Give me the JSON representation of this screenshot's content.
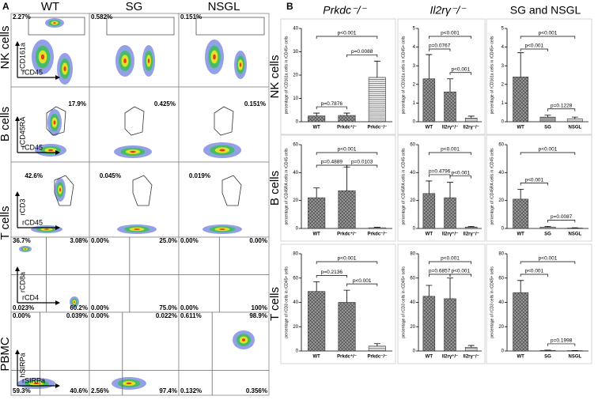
{
  "flow_panel": {
    "label": "A",
    "columns": [
      "WT",
      "SG",
      "NSGL"
    ],
    "row_labels": [
      "NK cells",
      "B cells",
      "T cells",
      "PBMC"
    ],
    "rows": [
      {
        "y_axis": "rCD161a",
        "x_axis": "rCD45",
        "gates": [
          "2.27%",
          "0.582%",
          "0.151%"
        ]
      },
      {
        "y_axis": "rCD45RA",
        "x_axis": "rCD45",
        "gates": [
          "17.9%",
          "0.425%",
          "0.151%"
        ]
      },
      {
        "y_axis": "rCD3",
        "x_axis": "rCD45",
        "gates": [
          "42.6%",
          "0.045%",
          "0.019%"
        ]
      },
      {
        "y_axis": "rCD8a",
        "x_axis": "rCD4",
        "quadrants": [
          [
            "36.7%",
            "3.08%",
            "0.023%",
            "60.2%"
          ],
          [
            "0.00%",
            "25.0%",
            "0.00%",
            "75.0%"
          ],
          [
            "0.00%",
            "0.00%",
            "0.00%",
            "100%"
          ]
        ]
      },
      {
        "y_axis": "hSIRPa",
        "x_axis": "rSIRPa",
        "quadrants": [
          [
            "0.00%",
            "0.039%",
            "59.3%",
            "40.6%"
          ],
          [
            "0.00%",
            "0.022%",
            "2.56%",
            "97.4%"
          ],
          [
            "0.611%",
            "98.9%",
            "0.132%",
            "0.356%"
          ]
        ]
      }
    ]
  },
  "panel_b": {
    "label": "B",
    "column_titles": [
      "Prkdc⁻/⁻",
      "Il2rγ⁻/⁻",
      "SG and NSGL"
    ],
    "row_labels": [
      "NK cells",
      "B cells",
      "T cells"
    ]
  },
  "chart_data": [
    {
      "type": "bar",
      "ylabel": "percentage of rCD161a cells in rCD45+ cells",
      "categories": [
        "WT",
        "Prkdc⁺/⁻",
        "Prkdc⁻/⁻"
      ],
      "values": [
        2.5,
        2.7,
        19
      ],
      "errors": [
        1.2,
        1.0,
        7
      ],
      "ylim": [
        0,
        40
      ],
      "yticks": [
        0,
        10,
        20,
        30,
        40
      ],
      "patterns": [
        "crosshatch",
        "crosshatch",
        "hlines"
      ],
      "comparisons": [
        {
          "label": "p<0.001",
          "between": [
            "WT",
            "Prkdc⁻/⁻"
          ]
        },
        {
          "label": "p=0.0088",
          "between": [
            "Prkdc⁺/⁻",
            "Prkdc⁻/⁻"
          ]
        },
        {
          "label": "p=0.7876",
          "between": [
            "WT",
            "Prkdc⁺/⁻"
          ]
        }
      ]
    },
    {
      "type": "bar",
      "ylabel": "percentage of rCD161a cells in rCD45+ cells",
      "categories": [
        "WT",
        "Il2rγ⁺/⁻",
        "Il2rγ⁻/⁻"
      ],
      "values": [
        2.3,
        1.6,
        0.2
      ],
      "errors": [
        1.3,
        0.7,
        0.1
      ],
      "ylim": [
        0,
        5
      ],
      "yticks": [
        0,
        1,
        2,
        3,
        4,
        5
      ],
      "patterns": [
        "crosshatch",
        "crosshatch",
        "hlines"
      ],
      "comparisons": [
        {
          "label": "p<0.001",
          "between": [
            "WT",
            "Il2rγ⁻/⁻"
          ]
        },
        {
          "label": "p=0.0767",
          "between": [
            "WT",
            "Il2rγ⁺/⁻"
          ]
        },
        {
          "label": "p<0.001",
          "between": [
            "Il2rγ⁺/⁻",
            "Il2rγ⁻/⁻"
          ]
        }
      ]
    },
    {
      "type": "bar",
      "ylabel": "percentage of rCD161a cells in rCD45+ cells",
      "categories": [
        "WT",
        "SG",
        "NSGL"
      ],
      "values": [
        2.4,
        0.25,
        0.15
      ],
      "errors": [
        1.3,
        0.1,
        0.1
      ],
      "ylim": [
        0,
        5
      ],
      "yticks": [
        0,
        1,
        2,
        3,
        4,
        5
      ],
      "patterns": [
        "crosshatch",
        "dots",
        "hlines"
      ],
      "comparisons": [
        {
          "label": "p<0.001",
          "between": [
            "WT",
            "NSGL"
          ]
        },
        {
          "label": "p<0.001",
          "between": [
            "WT",
            "SG"
          ]
        },
        {
          "label": "p=0.1228",
          "between": [
            "SG",
            "NSGL"
          ]
        }
      ]
    },
    {
      "type": "bar",
      "ylabel": "percentage of rCD45RA cells in rCD45 cells",
      "categories": [
        "WT",
        "Prkdc⁺/⁻",
        "Prkdc⁻/⁻"
      ],
      "values": [
        22,
        27,
        0.5
      ],
      "errors": [
        7,
        17,
        0.3
      ],
      "ylim": [
        0,
        60
      ],
      "yticks": [
        0,
        20,
        40,
        60
      ],
      "patterns": [
        "crosshatch",
        "crosshatch",
        "hlines"
      ],
      "comparisons": [
        {
          "label": "p<0.001",
          "between": [
            "WT",
            "Prkdc⁻/⁻"
          ]
        },
        {
          "label": "p=0.4889",
          "between": [
            "WT",
            "Prkdc⁺/⁻"
          ]
        },
        {
          "label": "p=0.0103",
          "between": [
            "Prkdc⁺/⁻",
            "Prkdc⁻/⁻"
          ]
        }
      ]
    },
    {
      "type": "bar",
      "ylabel": "percentage of rCD45RA cells in rCD45 cells",
      "categories": [
        "WT",
        "Il2rγ⁺/⁻",
        "Il2rγ⁻/⁻"
      ],
      "values": [
        25,
        22,
        1
      ],
      "errors": [
        9,
        11,
        0.5
      ],
      "ylim": [
        0,
        60
      ],
      "yticks": [
        0,
        20,
        40,
        60
      ],
      "patterns": [
        "crosshatch",
        "crosshatch",
        "hlines"
      ],
      "comparisons": [
        {
          "label": "p<0.001",
          "between": [
            "WT",
            "Il2rγ⁻/⁻"
          ]
        },
        {
          "label": "p=0.4796",
          "between": [
            "WT",
            "Il2rγ⁺/⁻"
          ]
        },
        {
          "label": "p<0.001",
          "between": [
            "Il2rγ⁺/⁻",
            "Il2rγ⁻/⁻"
          ]
        }
      ]
    },
    {
      "type": "bar",
      "ylabel": "percentage of rCD45RA cells in rCD45 cells",
      "categories": [
        "WT",
        "SG",
        "NSGL"
      ],
      "values": [
        21,
        1,
        0.3
      ],
      "errors": [
        7,
        0.5,
        0.2
      ],
      "ylim": [
        0,
        60
      ],
      "yticks": [
        0,
        20,
        40,
        60
      ],
      "patterns": [
        "crosshatch",
        "dots",
        "hlines"
      ],
      "comparisons": [
        {
          "label": "p<0.001",
          "between": [
            "WT",
            "NSGL"
          ]
        },
        {
          "label": "p<0.001",
          "between": [
            "WT",
            "SG"
          ]
        },
        {
          "label": "p=0.0087",
          "between": [
            "SG",
            "NSGL"
          ]
        }
      ]
    },
    {
      "type": "bar",
      "ylabel": "percentage of rCD3 cells in rCD45+ cells",
      "categories": [
        "WT",
        "Prkdc⁺/⁻",
        "Prkdc⁻/⁻"
      ],
      "values": [
        49,
        40,
        4
      ],
      "errors": [
        8,
        10,
        2
      ],
      "ylim": [
        0,
        80
      ],
      "yticks": [
        0,
        20,
        40,
        60,
        80
      ],
      "patterns": [
        "crosshatch",
        "crosshatch",
        "hlines"
      ],
      "comparisons": [
        {
          "label": "p<0.001",
          "between": [
            "WT",
            "Prkdc⁻/⁻"
          ]
        },
        {
          "label": "p=0.2136",
          "between": [
            "WT",
            "Prkdc⁺/⁻"
          ]
        },
        {
          "label": "p<0.001",
          "between": [
            "Prkdc⁺/⁻",
            "Prkdc⁻/⁻"
          ]
        }
      ]
    },
    {
      "type": "bar",
      "ylabel": "percentage of rCD3 cells in rCD45+ cells",
      "categories": [
        "WT",
        "Il2rγ⁺/⁻",
        "Il2rγ⁻/⁻"
      ],
      "values": [
        45,
        43,
        3
      ],
      "errors": [
        9,
        17,
        1.5
      ],
      "ylim": [
        0,
        80
      ],
      "yticks": [
        0,
        20,
        40,
        60,
        80
      ],
      "patterns": [
        "crosshatch",
        "crosshatch",
        "hlines"
      ],
      "comparisons": [
        {
          "label": "p<0.001",
          "between": [
            "WT",
            "Il2rγ⁻/⁻"
          ]
        },
        {
          "label": "p=0.6857",
          "between": [
            "WT",
            "Il2rγ⁺/⁻"
          ]
        },
        {
          "label": "p<0.001",
          "between": [
            "Il2rγ⁺/⁻",
            "Il2rγ⁻/⁻"
          ]
        }
      ]
    },
    {
      "type": "bar",
      "ylabel": "percentage of rCD3 cells in rCD45+ cells",
      "categories": [
        "WT",
        "SG",
        "NSGL"
      ],
      "values": [
        48,
        0.5,
        0.3
      ],
      "errors": [
        10,
        0.2,
        0.1
      ],
      "ylim": [
        0,
        80
      ],
      "yticks": [
        0,
        20,
        40,
        60,
        80
      ],
      "patterns": [
        "crosshatch",
        "dots",
        "hlines"
      ],
      "comparisons": [
        {
          "label": "p<0.001",
          "between": [
            "WT",
            "NSGL"
          ]
        },
        {
          "label": "p<0.001",
          "between": [
            "WT",
            "SG"
          ]
        },
        {
          "label": "p=0.1998",
          "between": [
            "SG",
            "NSGL"
          ]
        }
      ]
    }
  ]
}
